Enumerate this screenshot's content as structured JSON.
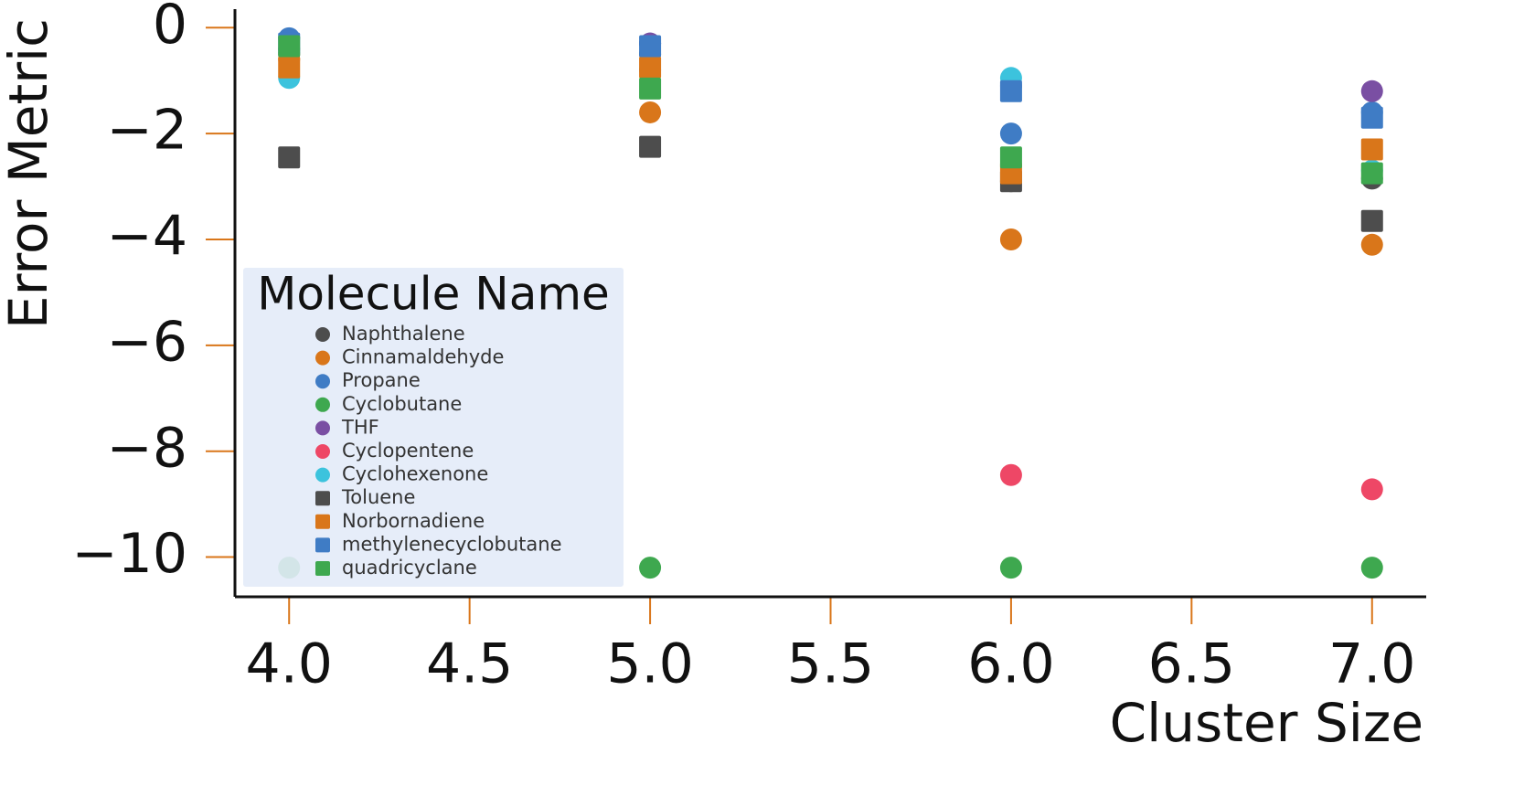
{
  "chart_data": {
    "type": "scatter",
    "xlabel": "Cluster Size",
    "ylabel": "Error Metric",
    "legend_title": "Molecule Name",
    "legend_position": "lower left",
    "x": [
      4,
      5,
      6,
      7
    ],
    "xlim": [
      3.85,
      7.15
    ],
    "xticks": [
      {
        "value": 4,
        "label": "4.0"
      },
      {
        "value": 4.5,
        "label": "4.5"
      },
      {
        "value": 5,
        "label": "5.0"
      },
      {
        "value": 5.5,
        "label": "5.5"
      },
      {
        "value": 6,
        "label": "6.0"
      },
      {
        "value": 6.5,
        "label": "6.5"
      },
      {
        "value": 7,
        "label": "7.0"
      }
    ],
    "ylim": [
      -10.75,
      0.35
    ],
    "yticks": [
      0,
      {
        "value": -2,
        "label": "−2"
      },
      {
        "value": -4,
        "label": "−4"
      },
      {
        "value": -6,
        "label": "−6"
      },
      {
        "value": -8,
        "label": "−8"
      },
      {
        "value": -10,
        "label": "−10"
      }
    ],
    "series": [
      {
        "name": "Naphthalene",
        "color": "#4d4d4d",
        "marker": "circle",
        "values": [
          -0.5,
          -0.5,
          -2.9,
          -2.85
        ]
      },
      {
        "name": "Cinnamaldehyde",
        "color": "#d9761a",
        "marker": "circle",
        "values": [
          -0.6,
          -1.6,
          -4.0,
          -4.1
        ]
      },
      {
        "name": "Propane",
        "color": "#3f7cc5",
        "marker": "circle",
        "values": [
          -0.2,
          -0.3,
          -2.0,
          -1.6
        ]
      },
      {
        "name": "Cyclobutane",
        "color": "#3ea84f",
        "marker": "circle",
        "values": [
          -10.2,
          -10.2,
          -10.2,
          -10.2
        ]
      },
      {
        "name": "THF",
        "color": "#7a4fa3",
        "marker": "circle",
        "values": [
          -0.4,
          -0.3,
          -1.1,
          -1.2
        ]
      },
      {
        "name": "Cyclopentene",
        "color": "#ee4766",
        "marker": "circle",
        "values": [
          null,
          null,
          -8.45,
          -8.72
        ]
      },
      {
        "name": "Cyclohexenone",
        "color": "#3cc3dd",
        "marker": "circle",
        "values": [
          -0.95,
          -0.8,
          -0.95,
          -2.7
        ]
      },
      {
        "name": "Toluene",
        "color": "#4d4d4d",
        "marker": "square",
        "values": [
          -2.45,
          -2.25,
          -2.9,
          -3.65
        ]
      },
      {
        "name": "Norbornadiene",
        "color": "#d9761a",
        "marker": "square",
        "values": [
          -0.75,
          -0.75,
          -2.75,
          -2.3
        ]
      },
      {
        "name": "methylenecyclobutane",
        "color": "#3f7cc5",
        "marker": "square",
        "values": [
          -0.3,
          -0.35,
          -1.2,
          -1.7
        ]
      },
      {
        "name": "quadricyclane",
        "color": "#3ea84f",
        "marker": "square",
        "values": [
          -0.35,
          -1.15,
          -2.45,
          -2.75
        ]
      }
    ]
  }
}
